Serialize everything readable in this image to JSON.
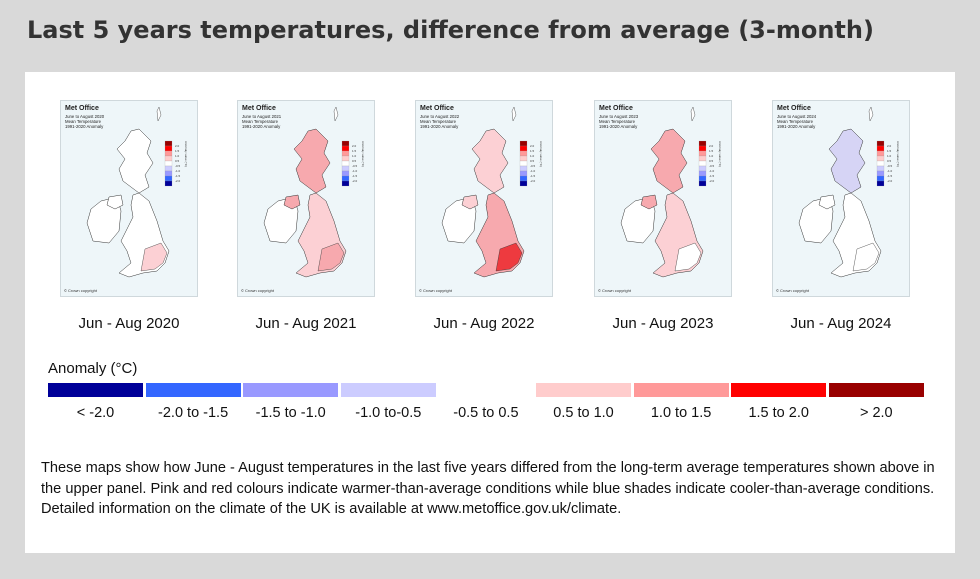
{
  "title": "Last 5 years temperatures, difference from average (3-month)",
  "maps": [
    {
      "brand": "Met Office",
      "line1": "June to August 2020",
      "line2": "Mean Temperature",
      "line3": "1991-2020 Anomaly",
      "copyright": "© Crown copyright",
      "caption": "Jun - Aug 2020",
      "gb_fill": "#ffffff",
      "hot_fill": "#fcd0d4",
      "ni_fill": "#ffffff",
      "scot_fill": "#ffffff"
    },
    {
      "brand": "Met Office",
      "line1": "June to August 2021",
      "line2": "Mean Temperature",
      "line3": "1991-2020 Anomaly",
      "copyright": "© Crown copyright",
      "caption": "Jun - Aug 2021",
      "gb_fill": "#fcd0d4",
      "hot_fill": "#f7a9ae",
      "ni_fill": "#f7a9ae",
      "scot_fill": "#f7a9ae"
    },
    {
      "brand": "Met Office",
      "line1": "June to August 2022",
      "line2": "Mean Temperature",
      "line3": "1991-2020 Anomaly",
      "copyright": "© Crown copyright",
      "caption": "Jun - Aug 2022",
      "gb_fill": "#f7a9ae",
      "hot_fill": "#ee3a3f",
      "ni_fill": "#fcd0d4",
      "scot_fill": "#fcd0d4"
    },
    {
      "brand": "Met Office",
      "line1": "June to August 2023",
      "line2": "Mean Temperature",
      "line3": "1991-2020 Anomaly",
      "copyright": "© Crown copyright",
      "caption": "Jun - Aug 2023",
      "gb_fill": "#fcd0d4",
      "hot_fill": "#ffffff",
      "ni_fill": "#f7a9ae",
      "scot_fill": "#f7a9ae"
    },
    {
      "brand": "Met Office",
      "line1": "June to August 2024",
      "line2": "Mean Temperature",
      "line3": "1991-2020 Anomaly",
      "copyright": "© Crown copyright",
      "caption": "Jun - Aug 2024",
      "gb_fill": "#ffffff",
      "hot_fill": "#ffffff",
      "ni_fill": "#ffffff",
      "scot_fill": "#d6d4f5"
    }
  ],
  "colorbar_ticks": [
    "2.0",
    "1.5",
    "1.0",
    "0.5",
    "-0.5",
    "-1.0",
    "-1.5",
    "-2.0"
  ],
  "colorbar_label": "Anomaly value (°C)",
  "legend": {
    "title": "Anomaly (°C)",
    "items": [
      {
        "label": "< -2.0",
        "color": "#000099"
      },
      {
        "label": "-2.0 to -1.5",
        "color": "#3366ff"
      },
      {
        "label": "-1.5 to -1.0",
        "color": "#9999ff"
      },
      {
        "label": "-1.0 to-0.5",
        "color": "#ccccff"
      },
      {
        "label": "-0.5 to 0.5",
        "color": "#ffffff"
      },
      {
        "label": "0.5 to 1.0",
        "color": "#ffcccc"
      },
      {
        "label": "1.0 to 1.5",
        "color": "#ff9999"
      },
      {
        "label": "1.5 to 2.0",
        "color": "#ff0000"
      },
      {
        "label": "> 2.0",
        "color": "#990000"
      }
    ]
  },
  "description": "These maps show how June - August temperatures in the last five years differed from the long-term average temperatures shown above in the upper panel. Pink and red colours indicate warmer-than-average conditions while blue shades indicate cooler-than-average conditions. Detailed information on the climate of the UK is available at www.metoffice.gov.uk/climate."
}
